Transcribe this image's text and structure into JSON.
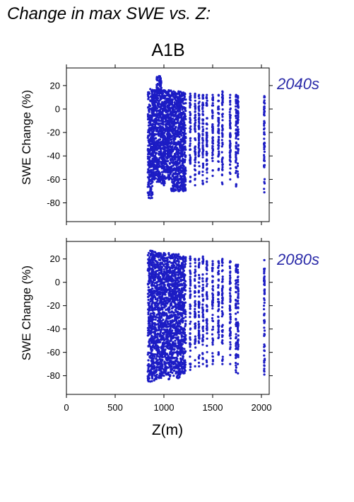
{
  "page": {
    "title": "Change in max SWE vs. Z:"
  },
  "chart_data": [
    {
      "type": "scatter",
      "title": "A1B",
      "panel_label": "2040s",
      "xlabel": "",
      "ylabel": "SWE Change (%)",
      "xlim": [
        0,
        2080
      ],
      "ylim": [
        -96,
        35
      ],
      "xticks": [
        0,
        500,
        1000,
        1500,
        2000
      ],
      "yticks": [
        20,
        0,
        -20,
        -40,
        -60,
        -80
      ],
      "color": "#1c1cc4",
      "series": [
        {
          "values_summary": "dense cloud of points",
          "columns": [
            {
              "x": 860,
              "ymin": -76,
              "ymax": 17
            },
            {
              "x": 900,
              "ymin": -60,
              "ymax": 16
            },
            {
              "x": 950,
              "ymin": -62,
              "ymax": 28
            },
            {
              "x": 1000,
              "ymin": -65,
              "ymax": 16
            },
            {
              "x": 1050,
              "ymin": -60,
              "ymax": 16
            },
            {
              "x": 1100,
              "ymin": -70,
              "ymax": 15
            },
            {
              "x": 1150,
              "ymin": -70,
              "ymax": 15
            },
            {
              "x": 1200,
              "ymin": -70,
              "ymax": 14
            },
            {
              "x": 1270,
              "ymin": -62,
              "ymax": 13
            },
            {
              "x": 1320,
              "ymin": -65,
              "ymax": 13
            },
            {
              "x": 1360,
              "ymin": -55,
              "ymax": 12
            },
            {
              "x": 1400,
              "ymin": -64,
              "ymax": 12
            },
            {
              "x": 1440,
              "ymin": -62,
              "ymax": 12
            },
            {
              "x": 1500,
              "ymin": -57,
              "ymax": 12
            },
            {
              "x": 1560,
              "ymin": -52,
              "ymax": 12
            },
            {
              "x": 1600,
              "ymin": -64,
              "ymax": 15
            },
            {
              "x": 1680,
              "ymin": -60,
              "ymax": 12
            },
            {
              "x": 1740,
              "ymin": -66,
              "ymax": 12
            },
            {
              "x": 1760,
              "ymin": -58,
              "ymax": 11
            },
            {
              "x": 2030,
              "ymin": -71,
              "ymax": 11
            }
          ]
        }
      ]
    },
    {
      "type": "scatter",
      "title": "",
      "panel_label": "2080s",
      "xlabel": "Z(m)",
      "ylabel": "SWE Change (%)",
      "xlim": [
        0,
        2080
      ],
      "ylim": [
        -96,
        35
      ],
      "xticks": [
        0,
        500,
        1000,
        1500,
        2000
      ],
      "yticks": [
        20,
        0,
        -20,
        -40,
        -60,
        -80
      ],
      "color": "#1c1cc4",
      "series": [
        {
          "values_summary": "dense cloud of points",
          "columns": [
            {
              "x": 860,
              "ymin": -85,
              "ymax": 27
            },
            {
              "x": 900,
              "ymin": -84,
              "ymax": 26
            },
            {
              "x": 950,
              "ymin": -82,
              "ymax": 25
            },
            {
              "x": 1000,
              "ymin": -80,
              "ymax": 25
            },
            {
              "x": 1050,
              "ymin": -83,
              "ymax": 25
            },
            {
              "x": 1100,
              "ymin": -80,
              "ymax": 24
            },
            {
              "x": 1150,
              "ymin": -82,
              "ymax": 24
            },
            {
              "x": 1200,
              "ymin": -78,
              "ymax": 22
            },
            {
              "x": 1270,
              "ymin": -75,
              "ymax": 22
            },
            {
              "x": 1320,
              "ymin": -72,
              "ymax": 20
            },
            {
              "x": 1360,
              "ymin": -72,
              "ymax": 20
            },
            {
              "x": 1400,
              "ymin": -70,
              "ymax": 22
            },
            {
              "x": 1440,
              "ymin": -72,
              "ymax": 18
            },
            {
              "x": 1500,
              "ymin": -70,
              "ymax": 18
            },
            {
              "x": 1560,
              "ymin": -62,
              "ymax": 18
            },
            {
              "x": 1600,
              "ymin": -70,
              "ymax": 20
            },
            {
              "x": 1680,
              "ymin": -70,
              "ymax": 18
            },
            {
              "x": 1740,
              "ymin": -77,
              "ymax": 15
            },
            {
              "x": 1760,
              "ymin": -78,
              "ymax": 15
            },
            {
              "x": 2030,
              "ymin": -79,
              "ymax": 19
            }
          ]
        }
      ]
    }
  ]
}
